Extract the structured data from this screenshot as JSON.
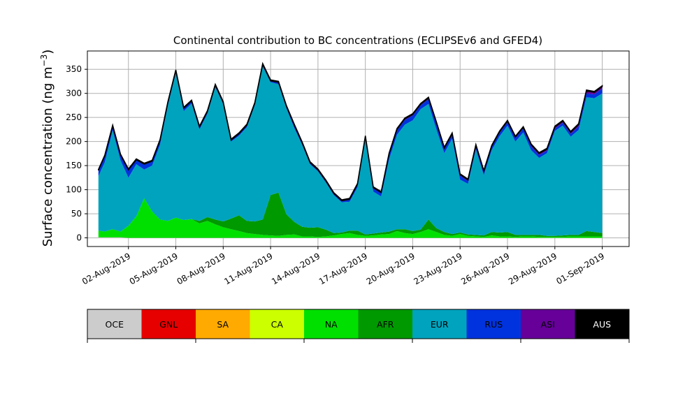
{
  "chart_data": {
    "type": "area",
    "stacked": true,
    "title": "Continental contribution to BC concentrations (ECLIPSEv6 and GFED4)",
    "ylabel": "Surface concentration (ng m",
    "ylabel_superscript": "−3",
    "ylabel_close": ")",
    "xlabel": "",
    "ylim": [
      -18,
      388
    ],
    "yticks": [
      0,
      50,
      100,
      150,
      200,
      250,
      300,
      350
    ],
    "xlim_days": [
      -1.6,
      32.7
    ],
    "xticks": [
      {
        "day": 1,
        "label": "02-Aug-2019"
      },
      {
        "day": 4,
        "label": "05-Aug-2019"
      },
      {
        "day": 7,
        "label": "08-Aug-2019"
      },
      {
        "day": 10,
        "label": "11-Aug-2019"
      },
      {
        "day": 13,
        "label": "14-Aug-2019"
      },
      {
        "day": 16,
        "label": "17-Aug-2019"
      },
      {
        "day": 19,
        "label": "20-Aug-2019"
      },
      {
        "day": 22,
        "label": "23-Aug-2019"
      },
      {
        "day": 25,
        "label": "26-Aug-2019"
      },
      {
        "day": 28,
        "label": "29-Aug-2019"
      },
      {
        "day": 31,
        "label": "01-Sep-2019"
      }
    ],
    "grid": true,
    "x_days": [
      -0.9,
      -0.5,
      0,
      0.5,
      1,
      1.5,
      2,
      2.5,
      3,
      3.5,
      4,
      4.5,
      5,
      5.5,
      6,
      6.5,
      7,
      7.5,
      8,
      8.5,
      9,
      9.5,
      10,
      10.5,
      11,
      11.5,
      12,
      12.5,
      13,
      13.5,
      14,
      14.5,
      15,
      15.5,
      16,
      16.5,
      17,
      17.5,
      18,
      18.5,
      19,
      19.5,
      20,
      20.5,
      21,
      21.5,
      22,
      22.5,
      23,
      23.5,
      24,
      24.5,
      25,
      25.5,
      26,
      26.5,
      27,
      27.5,
      28,
      28.5,
      29,
      29.5,
      30,
      30.5,
      31
    ],
    "series": [
      {
        "name": "OCE",
        "color": "#cccccc",
        "values": [
          1,
          1,
          1,
          1,
          0,
          0,
          0,
          0,
          0,
          0,
          0,
          0,
          0,
          0,
          0,
          0,
          0,
          0,
          0,
          0,
          0,
          0,
          0,
          0,
          0,
          0,
          0,
          0,
          0,
          0,
          0,
          0,
          0,
          0,
          0,
          0,
          0,
          0,
          0,
          0,
          0,
          0,
          0,
          0,
          0,
          0,
          0,
          0,
          0,
          0,
          0,
          0,
          0,
          0,
          0,
          0,
          0,
          0,
          0,
          0,
          0,
          0,
          0,
          0,
          0
        ]
      },
      {
        "name": "GNL",
        "color": "#e60000",
        "values": [
          0,
          0,
          0,
          0,
          0,
          0,
          0,
          0,
          0,
          0,
          0,
          0,
          0,
          0,
          0,
          0,
          0,
          0,
          0,
          0,
          0,
          0,
          0,
          0,
          0,
          0,
          0,
          0,
          0,
          0,
          0,
          0,
          0,
          0,
          0,
          0,
          0,
          0,
          0,
          0,
          0,
          0,
          0,
          0,
          0,
          0,
          0,
          0,
          0,
          0,
          0,
          0,
          0,
          0,
          0,
          0,
          0,
          0,
          0,
          0,
          0,
          0,
          0,
          0,
          0
        ]
      },
      {
        "name": "SA",
        "color": "#ffaa00",
        "values": [
          0,
          0,
          0,
          0,
          0,
          0,
          0,
          0,
          0,
          0,
          0,
          0,
          0,
          0,
          0,
          0,
          0,
          0,
          0,
          0,
          0,
          0,
          0,
          0,
          0,
          0,
          0,
          0,
          0,
          0,
          0,
          0,
          0,
          0,
          0,
          0,
          0,
          0,
          0,
          0,
          0,
          0,
          0,
          0,
          0,
          0,
          0,
          0,
          0,
          0,
          0,
          0,
          0,
          0,
          0,
          0,
          0,
          0,
          0,
          0,
          0,
          0,
          0,
          0,
          0
        ]
      },
      {
        "name": "CA",
        "color": "#ccff00",
        "values": [
          0,
          0,
          0,
          0,
          0,
          0,
          0,
          0,
          0,
          0,
          0,
          0,
          0,
          0,
          0,
          0,
          0,
          0,
          0,
          0,
          0,
          0,
          0,
          0,
          0,
          0,
          0,
          0,
          0,
          0,
          0,
          0,
          0,
          0,
          0,
          0,
          0,
          0,
          0,
          0,
          0,
          0,
          0,
          0,
          0,
          0,
          0,
          0,
          0,
          0,
          0,
          0,
          0,
          0,
          0,
          0,
          0,
          0,
          0,
          0,
          0,
          0,
          0,
          0,
          0
        ]
      },
      {
        "name": "NA",
        "color": "#00e000",
        "values": [
          14,
          12,
          17,
          12,
          25,
          45,
          82,
          55,
          38,
          35,
          42,
          37,
          39,
          30,
          35,
          28,
          22,
          18,
          14,
          10,
          8,
          6,
          5,
          4,
          6,
          7,
          3,
          3,
          2,
          3,
          5,
          8,
          10,
          6,
          4,
          5,
          7,
          8,
          14,
          10,
          8,
          12,
          18,
          12,
          6,
          4,
          8,
          4,
          3,
          2,
          5,
          3,
          3,
          2,
          3,
          3,
          2,
          2,
          2,
          2,
          3,
          3,
          3,
          3,
          3
        ]
      },
      {
        "name": "AFR",
        "color": "#009900",
        "values": [
          0,
          0,
          0,
          0,
          0,
          0,
          0,
          0,
          0,
          0,
          0,
          0,
          0,
          5,
          8,
          10,
          12,
          22,
          33,
          25,
          26,
          32,
          84,
          90,
          43,
          26,
          20,
          18,
          20,
          14,
          5,
          3,
          5,
          9,
          3,
          4,
          4,
          5,
          4,
          8,
          6,
          5,
          20,
          8,
          6,
          4,
          3,
          3,
          3,
          3,
          7,
          8,
          9,
          4,
          3,
          3,
          4,
          2,
          2,
          3,
          3,
          3,
          11,
          9,
          7
        ]
      },
      {
        "name": "EUR",
        "color": "#00a3bd",
        "values": [
          113,
          144,
          205,
          148,
          100,
          108,
          60,
          95,
          155,
          240,
          300,
          226,
          240,
          190,
          215,
          275,
          244,
          160,
          165,
          195,
          241,
          318,
          234,
          225,
          220,
          195,
          170,
          132,
          116,
          98,
          79,
          63,
          60,
          90,
          196,
          87,
          75,
          150,
          196,
          217,
          230,
          250,
          240,
          205,
          164,
          198,
          110,
          105,
          178,
          125,
          170,
          200,
          221,
          194,
          213,
          176,
          160,
          172,
          218,
          228,
          204,
          218,
          278,
          278,
          290
        ]
      },
      {
        "name": "RUS",
        "color": "#0033dd",
        "values": [
          10,
          11,
          8,
          10,
          15,
          8,
          10,
          8,
          8,
          5,
          4,
          5,
          4,
          4,
          3,
          3,
          2,
          2,
          3,
          3,
          3,
          3,
          2,
          3,
          3,
          5,
          3,
          2,
          2,
          2,
          2,
          2,
          4,
          5,
          6,
          7,
          7,
          9,
          9,
          10,
          10,
          8,
          10,
          12,
          8,
          8,
          8,
          6,
          6,
          6,
          6,
          7,
          7,
          7,
          8,
          8,
          6,
          5,
          5,
          6,
          6,
          7,
          8,
          8,
          10
        ]
      },
      {
        "name": "ASI",
        "color": "#660099",
        "values": [
          2,
          2,
          1,
          1,
          1,
          1,
          1,
          1,
          1,
          1,
          1,
          1,
          1,
          1,
          1,
          1,
          1,
          1,
          1,
          1,
          1,
          1,
          1,
          1,
          1,
          1,
          1,
          1,
          1,
          1,
          1,
          1,
          1,
          1,
          1,
          1,
          1,
          2,
          2,
          2,
          2,
          2,
          2,
          2,
          2,
          2,
          2,
          2,
          2,
          2,
          2,
          2,
          2,
          2,
          2,
          3,
          3,
          3,
          3,
          3,
          3,
          4,
          5,
          4,
          4
        ]
      },
      {
        "name": "AUS",
        "color": "#000000",
        "values": [
          2,
          2,
          2,
          2,
          2,
          2,
          2,
          2,
          2,
          2,
          2,
          2,
          2,
          2,
          2,
          2,
          2,
          2,
          2,
          2,
          2,
          2,
          2,
          2,
          2,
          2,
          2,
          2,
          2,
          2,
          2,
          2,
          2,
          2,
          2,
          2,
          2,
          2,
          2,
          2,
          2,
          2,
          2,
          2,
          2,
          2,
          2,
          2,
          2,
          2,
          2,
          2,
          2,
          2,
          2,
          2,
          2,
          2,
          2,
          2,
          2,
          2,
          2,
          2,
          2
        ]
      }
    ],
    "legend_position": "bottom-colorbar",
    "grid_color": "#b0b0b0"
  }
}
